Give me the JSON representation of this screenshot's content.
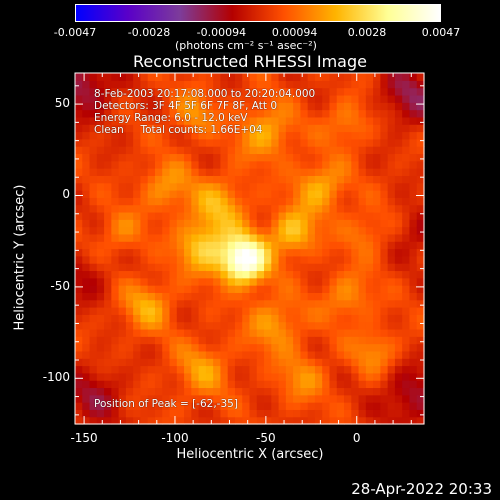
{
  "chart_data": {
    "type": "heatmap",
    "title": "Reconstructed RHESSI Image",
    "xlabel": "Heliocentric X (arcsec)",
    "ylabel": "Heliocentric Y (arcsec)",
    "xlim": [
      -155,
      37
    ],
    "ylim": [
      -125,
      67
    ],
    "x_ticks": [
      "-150",
      "-100",
      "-50",
      "0"
    ],
    "x_tick_values": [
      -150,
      -100,
      -50,
      0
    ],
    "y_ticks": [
      "50",
      "0",
      "-50",
      "-100"
    ],
    "y_tick_values": [
      50,
      0,
      -50,
      -100
    ],
    "colorbar": {
      "min": -0.0047,
      "max": 0.0047,
      "tick_labels": [
        "-0.0047",
        "-0.0028",
        "-0.00094",
        "0.00094",
        "0.0028",
        "0.0047"
      ],
      "tick_values": [
        -0.0047,
        -0.0028,
        -0.00094,
        0.00094,
        0.0028,
        0.0047
      ],
      "units": "(photons cm⁻² s⁻¹ asec⁻²)",
      "colors": [
        "#0000ff",
        "#5a00c8",
        "#7d3c9a",
        "#b40000",
        "#ff5000",
        "#ffb400",
        "#ffff96",
        "#ffffff"
      ]
    },
    "annotations": {
      "time_range": "8-Feb-2003 20:17:08.000 to 20:20:04.000",
      "detectors": "Detectors: 3F 4F 5F 6F 7F 8F, Att 0",
      "energy_range": "Energy Range: 6.0 - 12.0 keV",
      "clean_counts": "Clean     Total counts: 1.66E+04",
      "peak": "Position of Peak = [-62,-35]"
    },
    "peak": {
      "x": -62,
      "y": -35
    },
    "sources": [
      {
        "x": -62,
        "y": -35,
        "amp": 0.0047,
        "sigma": 9
      },
      {
        "x": -85,
        "y": -28,
        "amp": 0.0021,
        "sigma": 10
      },
      {
        "x": -35,
        "y": -20,
        "amp": 0.002,
        "sigma": 9
      },
      {
        "x": -75,
        "y": -5,
        "amp": 0.0016,
        "sigma": 11
      },
      {
        "x": -20,
        "y": 5,
        "amp": 0.0017,
        "sigma": 10
      },
      {
        "x": -105,
        "y": 5,
        "amp": 0.0013,
        "sigma": 10
      },
      {
        "x": -50,
        "y": 35,
        "amp": 0.0016,
        "sigma": 11
      },
      {
        "x": -90,
        "y": 45,
        "amp": 0.0012,
        "sigma": 9
      },
      {
        "x": -5,
        "y": 40,
        "amp": 0.0011,
        "sigma": 9
      },
      {
        "x": -115,
        "y": -60,
        "amp": 0.0015,
        "sigma": 10
      },
      {
        "x": -45,
        "y": -70,
        "amp": 0.0014,
        "sigma": 11
      },
      {
        "x": -5,
        "y": -55,
        "amp": 0.0012,
        "sigma": 10
      },
      {
        "x": -85,
        "y": -95,
        "amp": 0.0013,
        "sigma": 11
      },
      {
        "x": -30,
        "y": -100,
        "amp": 0.0011,
        "sigma": 10
      },
      {
        "x": 10,
        "y": -85,
        "amp": 0.0012,
        "sigma": 9
      },
      {
        "x": -130,
        "y": -20,
        "amp": 0.001,
        "sigma": 9
      },
      {
        "x": 5,
        "y": -20,
        "amp": 0.001,
        "sigma": 9
      }
    ],
    "negative_regions": [
      {
        "x": -150,
        "y": 60,
        "amp": -0.0016,
        "sigma": 12
      },
      {
        "x": 30,
        "y": 55,
        "amp": -0.0015,
        "sigma": 12
      },
      {
        "x": 30,
        "y": -110,
        "amp": -0.0014,
        "sigma": 12
      },
      {
        "x": -145,
        "y": -110,
        "amp": -0.0012,
        "sigma": 12
      },
      {
        "x": 35,
        "y": -20,
        "amp": -0.001,
        "sigma": 10
      },
      {
        "x": -150,
        "y": -45,
        "amp": -0.0009,
        "sigma": 10
      }
    ],
    "background": 0.0003
  },
  "footer": {
    "date": "28-Apr-2022 20:33"
  }
}
